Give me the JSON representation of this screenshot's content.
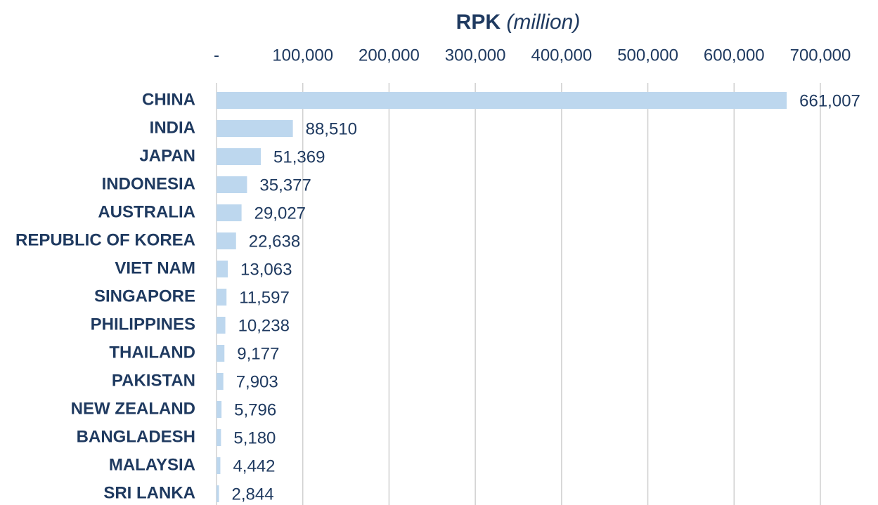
{
  "chart_data": {
    "type": "hbar",
    "title": "RPK",
    "subtitle": "(million)",
    "categories": [
      "CHINA",
      "INDIA",
      "JAPAN",
      "INDONESIA",
      "AUSTRALIA",
      "REPUBLIC OF KOREA",
      "VIET NAM",
      "SINGAPORE",
      "PHILIPPINES",
      "THAILAND",
      "PAKISTAN",
      "NEW ZEALAND",
      "BANGLADESH",
      "MALAYSIA",
      "SRI LANKA"
    ],
    "values": [
      661007,
      88510,
      51369,
      35377,
      29027,
      22638,
      13063,
      11597,
      10238,
      9177,
      7903,
      5796,
      5180,
      4442,
      2844
    ],
    "value_labels": [
      "661,007",
      "88,510",
      "51,369",
      "35,377",
      "29,027",
      "22,638",
      "13,063",
      "11,597",
      "10,238",
      "9,177",
      "7,903",
      "5,796",
      "5,180",
      "4,442",
      "2,844"
    ],
    "color": "#bdd7ee",
    "xlim": [
      0,
      700000
    ],
    "xticks": [
      {
        "value": 0,
        "label": "-"
      },
      {
        "value": 100000,
        "label": "100,000"
      },
      {
        "value": 200000,
        "label": "200,000"
      },
      {
        "value": 300000,
        "label": "300,000"
      },
      {
        "value": 400000,
        "label": "400,000"
      },
      {
        "value": 500000,
        "label": "500,000"
      },
      {
        "value": 600000,
        "label": "600,000"
      },
      {
        "value": 700000,
        "label": "700,000"
      }
    ],
    "grid": true
  }
}
